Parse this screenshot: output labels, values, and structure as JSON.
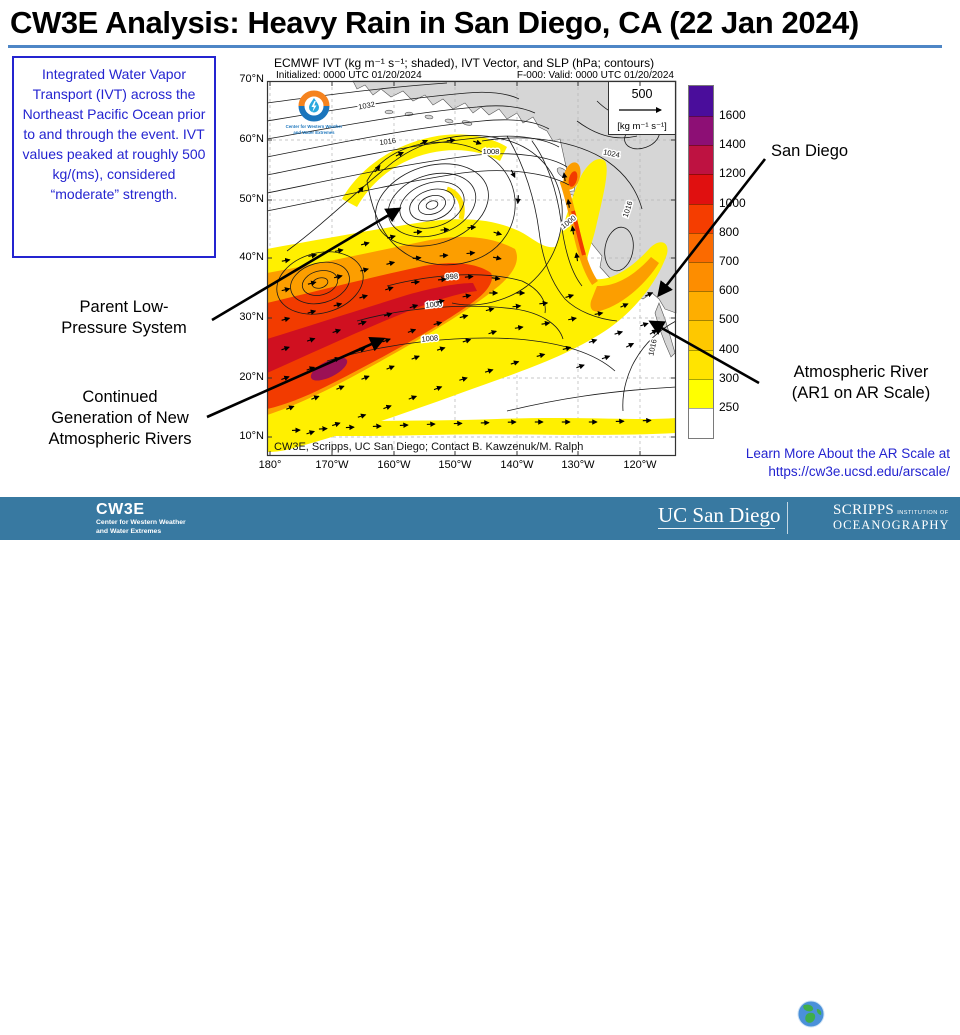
{
  "slide": {
    "title": "CW3E Analysis: Heavy Rain in San Diego, CA (22 Jan 2024)",
    "underline_color": "#4e86c6"
  },
  "ivt_note": {
    "text": "Integrated Water Vapor Transport (IVT) across the Northeast Pacific Ocean prior to and through the event. IVT values peaked at roughly 500 kg/(ms), considered “moderate” strength.",
    "color": "#2424d0"
  },
  "map": {
    "title": "ECMWF IVT (kg m⁻¹ s⁻¹; shaded), IVT Vector, and SLP (hPa; contours)",
    "initialized": "Initialized: 0000 UTC 01/20/2024",
    "valid": "F-000: Valid: 0000 UTC 01/20/2024",
    "vector_scale": {
      "value": "500",
      "units": "[kg m⁻¹ s⁻¹]"
    },
    "logo": {
      "line1": "Center for Western Weather",
      "line2": "and Water Extremes"
    },
    "attribution": "CW3E, Scripps, UC San Diego; Contact B. Kawzenuk/M. Ralph",
    "lat_labels": [
      "70°N",
      "60°N",
      "50°N",
      "40°N",
      "30°N",
      "20°N",
      "10°N"
    ],
    "lon_labels": [
      "180°",
      "170°W",
      "160°W",
      "150°W",
      "140°W",
      "130°W",
      "120°W"
    ],
    "contour_labels": [
      "1032",
      "1016",
      "1008",
      "1024",
      "1016",
      "1000",
      "998",
      "1000",
      "1008",
      "1016"
    ]
  },
  "colorbar": {
    "tick_labels": [
      "1600",
      "1400",
      "1200",
      "1000",
      "800",
      "700",
      "600",
      "500",
      "400",
      "300",
      "250"
    ],
    "colors": [
      "#4a0d9b",
      "#8d0f75",
      "#be1241",
      "#e01010",
      "#f53d00",
      "#fb6a00",
      "#fd8d00",
      "#feae00",
      "#fec800",
      "#ffe400",
      "#ffff00",
      "#ffffff"
    ]
  },
  "annotations": {
    "san_diego": "San Diego",
    "parent_low_1": "Parent Low-",
    "parent_low_2": "Pressure System",
    "continued_1": "Continued",
    "continued_2": "Generation of New",
    "continued_3": "Atmospheric Rivers",
    "ar_1": "Atmospheric River",
    "ar_2": "(AR1 on AR Scale)",
    "learn_more_1": "Learn More About the AR Scale at",
    "learn_more_2": "https://cw3e.ucsd.edu/arscale/",
    "link_color": "#2424d0"
  },
  "footer": {
    "bg_color": "#3879a1",
    "cw3e_name": "CW3E",
    "cw3e_sub1": "Center for Western Weather",
    "cw3e_sub2": "and Water Extremes",
    "ucsd": "UC San Diego",
    "scripps_1": "SCRIPPS",
    "scripps_1b": "INSTITUTION OF",
    "scripps_2": "OCEANOGRAPHY"
  }
}
